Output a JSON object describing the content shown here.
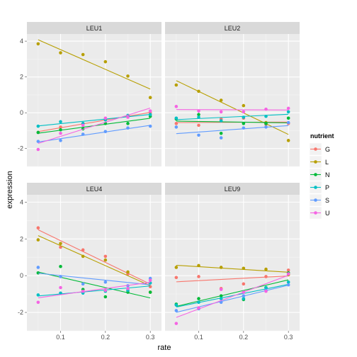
{
  "chart_data": {
    "type": "scatter",
    "x_label": "rate",
    "y_label": "expression",
    "x_ticks": [
      "0.1",
      "0.2",
      "0.3"
    ],
    "y_ticks": [
      "-2",
      "0",
      "2",
      "4"
    ],
    "xlim": [
      0.025,
      0.325
    ],
    "ylim": [
      -3.0,
      4.4
    ],
    "legend_title": "nutrient",
    "legend_position": "right",
    "grid": true,
    "x": [
      0.05,
      0.1,
      0.15,
      0.2,
      0.25,
      0.3
    ],
    "series": [
      {
        "name": "G",
        "color": "#F8766D"
      },
      {
        "name": "L",
        "color": "#B79F00"
      },
      {
        "name": "N",
        "color": "#00BA38"
      },
      {
        "name": "P",
        "color": "#00BFC4"
      },
      {
        "name": "S",
        "color": "#619CFF"
      },
      {
        "name": "U",
        "color": "#F564E3"
      }
    ],
    "panels": [
      {
        "label": "LEU1",
        "values": {
          "G": [
            -1.1,
            -0.8,
            -0.6,
            -0.4,
            -0.2,
            0.0
          ],
          "L": [
            3.85,
            3.35,
            3.25,
            2.85,
            2.05,
            0.85
          ],
          "N": [
            -1.1,
            -0.95,
            -0.9,
            -0.6,
            -0.6,
            -0.2
          ],
          "P": [
            -0.75,
            -0.5,
            -0.6,
            -0.4,
            -0.15,
            -0.1
          ],
          "S": [
            -1.6,
            -1.55,
            -1.2,
            -1.05,
            -0.85,
            -0.75
          ],
          "U": [
            -2.05,
            -1.15,
            -0.7,
            -0.3,
            -0.25,
            0.1
          ]
        }
      },
      {
        "label": "LEU2",
        "values": {
          "G": [
            -0.6,
            -0.7,
            -0.35,
            -0.3,
            -0.65,
            -0.6
          ],
          "L": [
            1.55,
            1.2,
            0.7,
            0.4,
            -0.55,
            -1.55
          ],
          "N": [
            -0.35,
            -0.1,
            -1.15,
            -0.6,
            -0.6,
            -0.3
          ],
          "P": [
            -0.3,
            -0.25,
            -0.45,
            -0.25,
            -0.2,
            0.05
          ],
          "S": [
            -0.8,
            -1.25,
            -1.4,
            -0.85,
            -0.8,
            -0.55
          ],
          "U": [
            0.35,
            0.1,
            0.05,
            0.05,
            0.2,
            0.25
          ]
        }
      },
      {
        "label": "LEU4",
        "values": {
          "G": [
            2.6,
            1.55,
            1.4,
            1.05,
            0.1,
            -0.6
          ],
          "L": [
            1.95,
            1.75,
            1.05,
            0.85,
            0.2,
            -0.9
          ],
          "N": [
            0.15,
            0.5,
            -0.75,
            -1.15,
            -0.9,
            -0.9
          ],
          "P": [
            -1.05,
            -0.95,
            -0.95,
            -0.85,
            -0.8,
            -0.4
          ],
          "S": [
            0.45,
            -0.05,
            -0.45,
            -0.35,
            -0.55,
            -0.15
          ],
          "U": [
            -1.45,
            -0.65,
            -0.85,
            -0.8,
            -0.7,
            -0.25
          ]
        }
      },
      {
        "label": "LEU9",
        "values": {
          "G": [
            -0.1,
            -0.05,
            -0.7,
            -0.45,
            -0.05,
            0.3
          ],
          "L": [
            0.45,
            0.55,
            0.45,
            0.4,
            0.35,
            0.05
          ],
          "N": [
            -1.55,
            -1.25,
            -1.1,
            -1.3,
            -0.65,
            0.15
          ],
          "P": [
            -1.6,
            -1.45,
            -1.25,
            -1.25,
            -0.65,
            -0.35
          ],
          "S": [
            -1.9,
            -1.8,
            -1.45,
            -1.1,
            -0.8,
            -0.5
          ],
          "U": [
            -2.6,
            -1.75,
            -0.75,
            -0.9,
            -0.85,
            0.1
          ]
        }
      }
    ]
  }
}
